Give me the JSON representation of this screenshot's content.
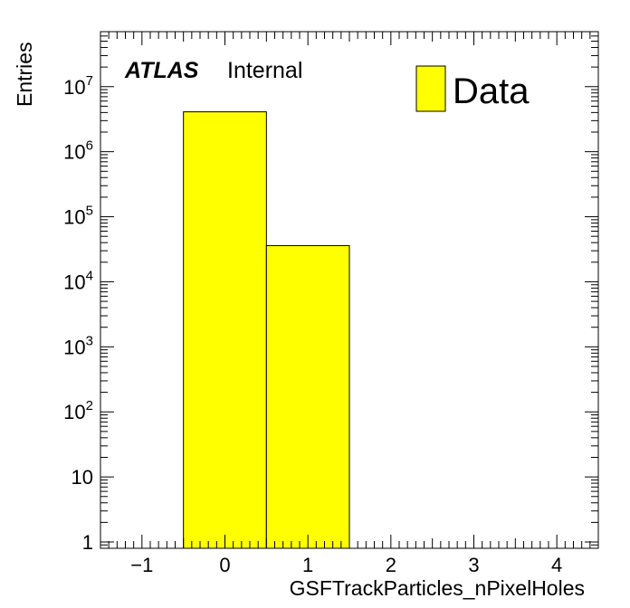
{
  "chart_data": {
    "type": "bar",
    "style": "histogram",
    "xlabel": "GSFTrackParticles_nPixelHoles",
    "ylabel": "Entries",
    "xlim": [
      -1.5,
      4.5
    ],
    "ylim": [
      0.8,
      70000000
    ],
    "yscale": "log",
    "x_tick_labels": [
      "−1",
      "0",
      "1",
      "2",
      "3",
      "4"
    ],
    "x_tick_values": [
      -1,
      0,
      1,
      2,
      3,
      4
    ],
    "y_tick_values": [
      1,
      10,
      100,
      1000,
      10000,
      100000,
      1000000,
      10000000
    ],
    "y_tick_labels": [
      {
        "base": "1",
        "exp": ""
      },
      {
        "base": "10",
        "exp": ""
      },
      {
        "base": "10",
        "exp": "2"
      },
      {
        "base": "10",
        "exp": "3"
      },
      {
        "base": "10",
        "exp": "4"
      },
      {
        "base": "10",
        "exp": "5"
      },
      {
        "base": "10",
        "exp": "6"
      },
      {
        "base": "10",
        "exp": "7"
      }
    ],
    "series": [
      {
        "name": "Data",
        "color": "#ffff00",
        "bins": [
          {
            "low": -0.5,
            "high": 0.5,
            "value": 4100000
          },
          {
            "low": 0.5,
            "high": 1.5,
            "value": 36000
          }
        ]
      }
    ],
    "legend_position": "top-right",
    "grid": false
  },
  "labels": {
    "atlas": "ATLAS",
    "internal": "Internal",
    "legend_entry": "Data"
  }
}
